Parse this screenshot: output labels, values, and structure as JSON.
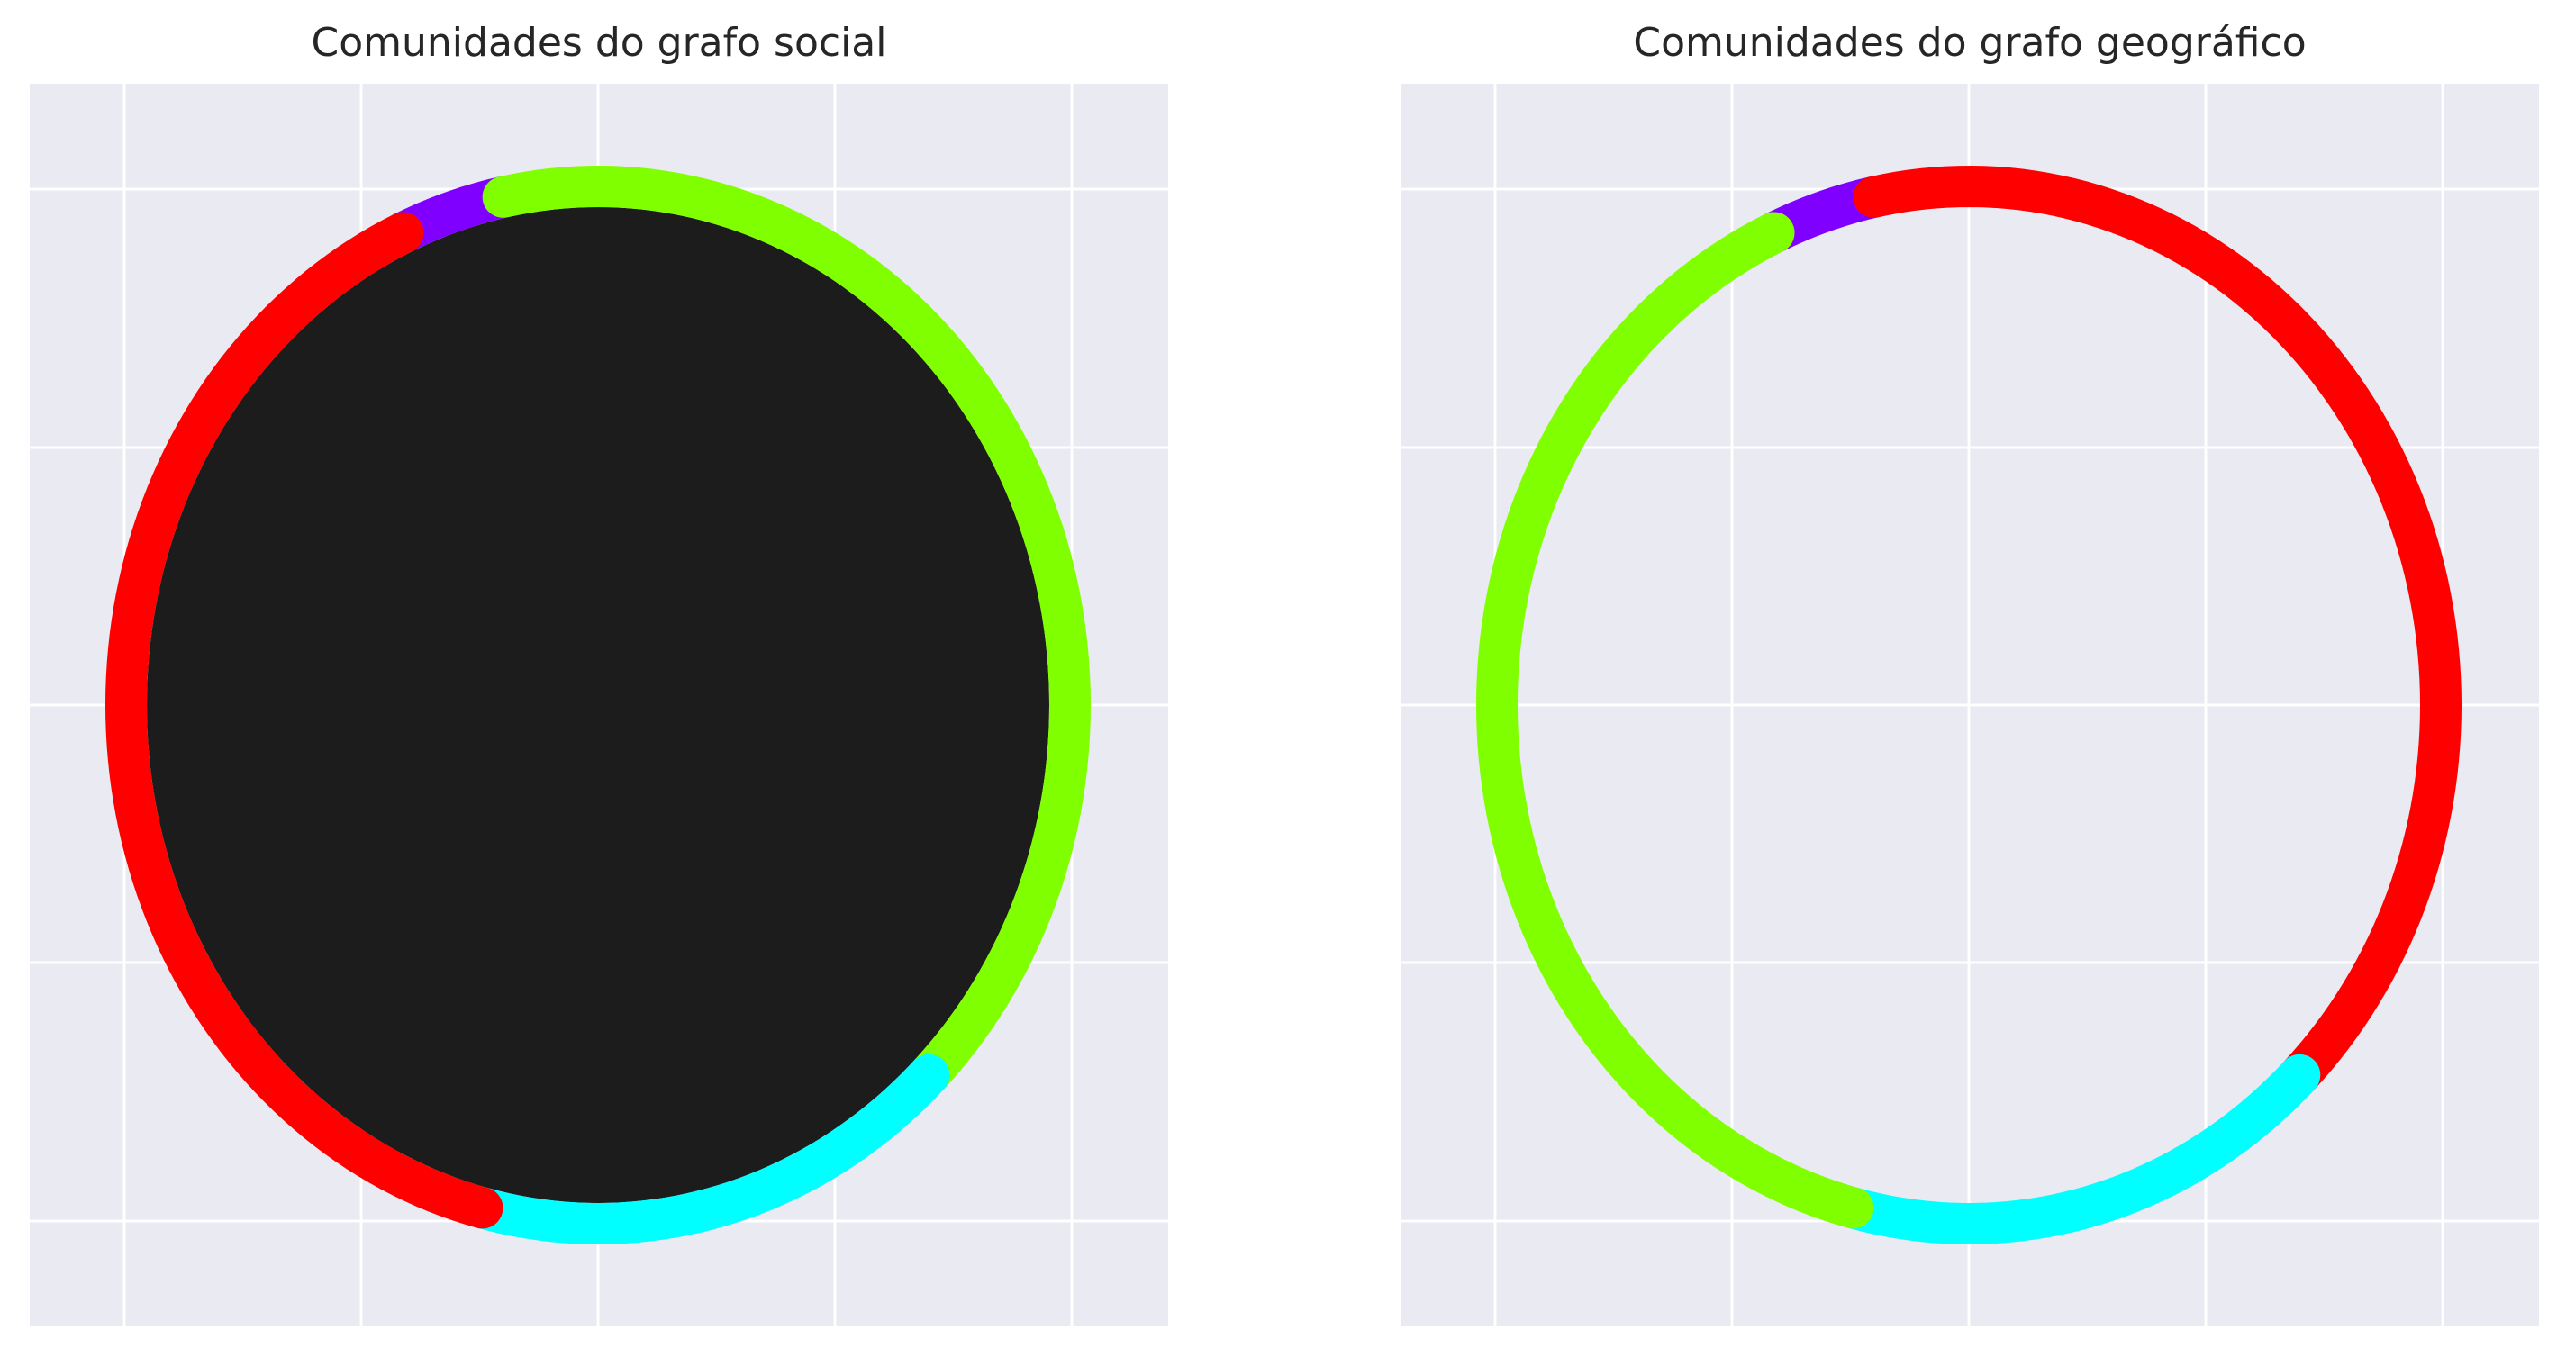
{
  "chart_data": [
    {
      "type": "chord",
      "title": "Comunidades do grafo social",
      "grid": true,
      "background": "#eaeaf2",
      "node_fill": "#1c1c1c",
      "ring_segments": [
        {
          "color": "#8000ff",
          "start_deg": 101.6,
          "end_deg": 114.4
        },
        {
          "color": "#80ff00",
          "start_deg": 0.0,
          "end_deg": 101.6
        },
        {
          "color": "#80ff00",
          "start_deg": 314.5,
          "end_deg": 360.0
        },
        {
          "color": "#00ffff",
          "start_deg": 255.8,
          "end_deg": 314.5
        },
        {
          "color": "#ff0000",
          "start_deg": 114.4,
          "end_deg": 255.8
        }
      ]
    },
    {
      "type": "chord",
      "title": "Comunidades do grafo geográfico",
      "grid": true,
      "background": "#eaeaf2",
      "node_fill": "none",
      "ring_segments": [
        {
          "color": "#8000ff",
          "start_deg": 101.6,
          "end_deg": 114.4
        },
        {
          "color": "#ff0000",
          "start_deg": 0.0,
          "end_deg": 101.6
        },
        {
          "color": "#ff0000",
          "start_deg": 314.5,
          "end_deg": 360.0
        },
        {
          "color": "#00ffff",
          "start_deg": 255.8,
          "end_deg": 314.5
        },
        {
          "color": "#80ff00",
          "start_deg": 114.4,
          "end_deg": 255.8
        }
      ]
    }
  ]
}
